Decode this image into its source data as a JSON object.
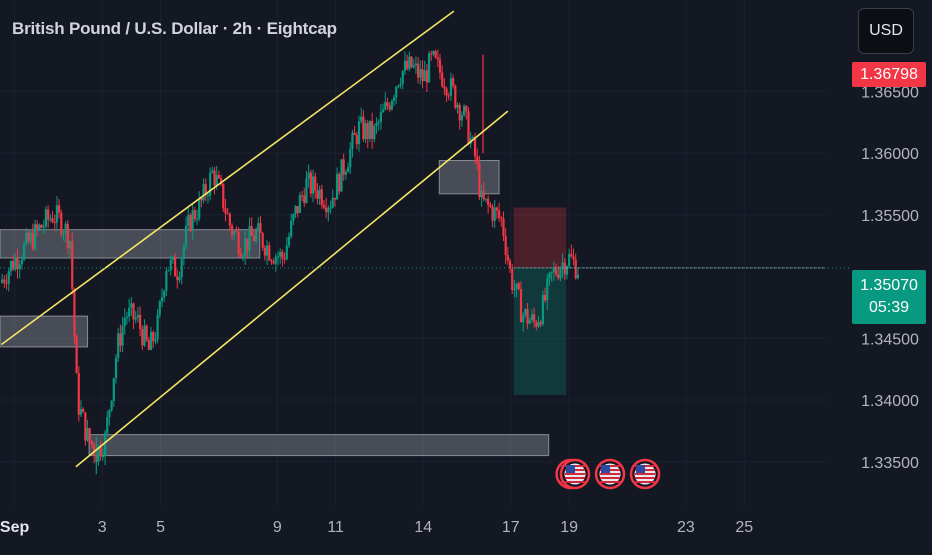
{
  "header": {
    "title": "British Pound / U.S. Dollar · 2h · Eightcap",
    "currency_button": "USD"
  },
  "price_tags": {
    "high": "1.36798",
    "current": "1.35070",
    "countdown": "05:39"
  },
  "colors": {
    "background": "#141823",
    "up": "#089981",
    "down": "#f23645",
    "channel": "#f5e663",
    "zone": "#d1d4dc",
    "axis_text": "#b2b5be"
  },
  "chart_data": {
    "type": "candlestick",
    "title": "British Pound / U.S. Dollar · 2h · Eightcap",
    "ylim": [
      1.3315,
      1.3724
    ],
    "y_ticks": [
      1.365,
      1.36,
      1.355,
      1.345,
      1.34,
      1.335
    ],
    "y_tick_labels": [
      "1.36500",
      "1.36000",
      "1.35500",
      "1.34500",
      "1.34000",
      "1.33500"
    ],
    "x_ticks": [
      {
        "day": 0,
        "label": "Sep"
      },
      {
        "day": 3,
        "label": "3"
      },
      {
        "day": 5,
        "label": "5"
      },
      {
        "day": 9,
        "label": "9"
      },
      {
        "day": 11,
        "label": "11"
      },
      {
        "day": 14,
        "label": "14"
      },
      {
        "day": 17,
        "label": "17"
      },
      {
        "day": 19,
        "label": "19"
      },
      {
        "day": 23,
        "label": "23"
      },
      {
        "day": 25,
        "label": "25"
      }
    ],
    "xlim": [
      -0.5,
      27.8
    ],
    "price_path": [
      [
        -0.5,
        1.3495
      ],
      [
        -0.1,
        1.351
      ],
      [
        0.4,
        1.3525
      ],
      [
        0.9,
        1.354
      ],
      [
        1.3,
        1.355
      ],
      [
        1.6,
        1.3545
      ],
      [
        1.9,
        1.353
      ],
      [
        2.15,
        1.34
      ],
      [
        2.5,
        1.337
      ],
      [
        2.8,
        1.3358
      ],
      [
        3.1,
        1.3368
      ],
      [
        3.5,
        1.344
      ],
      [
        3.8,
        1.347
      ],
      [
        4.2,
        1.3465
      ],
      [
        4.6,
        1.344
      ],
      [
        4.9,
        1.346
      ],
      [
        5.2,
        1.351
      ],
      [
        5.6,
        1.3505
      ],
      [
        6.0,
        1.3545
      ],
      [
        6.4,
        1.356
      ],
      [
        6.8,
        1.3585
      ],
      [
        7.1,
        1.3565
      ],
      [
        7.4,
        1.354
      ],
      [
        7.8,
        1.3525
      ],
      [
        8.3,
        1.3535
      ],
      [
        8.8,
        1.352
      ],
      [
        9.2,
        1.3515
      ],
      [
        9.6,
        1.355
      ],
      [
        10.0,
        1.3575
      ],
      [
        10.4,
        1.357
      ],
      [
        10.8,
        1.356
      ],
      [
        11.3,
        1.359
      ],
      [
        11.8,
        1.362
      ],
      [
        12.3,
        1.3615
      ],
      [
        12.8,
        1.364
      ],
      [
        13.2,
        1.3665
      ],
      [
        13.6,
        1.367
      ],
      [
        14.0,
        1.366
      ],
      [
        14.3,
        1.3675
      ],
      [
        14.6,
        1.3665
      ],
      [
        15.0,
        1.365
      ],
      [
        15.4,
        1.363
      ],
      [
        15.8,
        1.3595
      ],
      [
        16.0,
        1.356
      ],
      [
        16.3,
        1.3555
      ],
      [
        16.7,
        1.3545
      ],
      [
        17.0,
        1.35
      ],
      [
        17.4,
        1.347
      ],
      [
        17.8,
        1.3462
      ],
      [
        18.1,
        1.3475
      ],
      [
        18.4,
        1.35
      ],
      [
        18.7,
        1.351
      ],
      [
        19.0,
        1.3515
      ],
      [
        19.3,
        1.3507
      ]
    ],
    "recent_high": 1.36798,
    "current_price": 1.3507,
    "channel_lines": [
      {
        "from": [
          -0.45,
          1.3445
        ],
        "to": [
          15.05,
          1.3715
        ]
      },
      {
        "from": [
          2.1,
          1.3346
        ],
        "to": [
          16.9,
          1.3634
        ]
      }
    ],
    "zones": [
      {
        "x0": -0.5,
        "x1": 8.4,
        "y0": 1.3515,
        "y1": 1.3538
      },
      {
        "x0": -0.5,
        "x1": 2.5,
        "y0": 1.3443,
        "y1": 1.3468
      },
      {
        "x0": 14.55,
        "x1": 16.6,
        "y0": 1.3567,
        "y1": 1.3594
      },
      {
        "x0": 2.55,
        "x1": 18.3,
        "y0": 1.3355,
        "y1": 1.3372
      }
    ],
    "position_box": {
      "x0": 17.1,
      "x1": 18.9,
      "entry": 1.3507,
      "stop": 1.3556,
      "target": 1.3404
    },
    "event_markers": [
      {
        "day": 19.05,
        "icon": "us-flag-icon"
      },
      {
        "day": 19.2,
        "icon": "us-flag-icon"
      },
      {
        "day": 20.4,
        "icon": "us-flag-icon"
      },
      {
        "day": 21.6,
        "icon": "us-flag-icon"
      }
    ]
  }
}
